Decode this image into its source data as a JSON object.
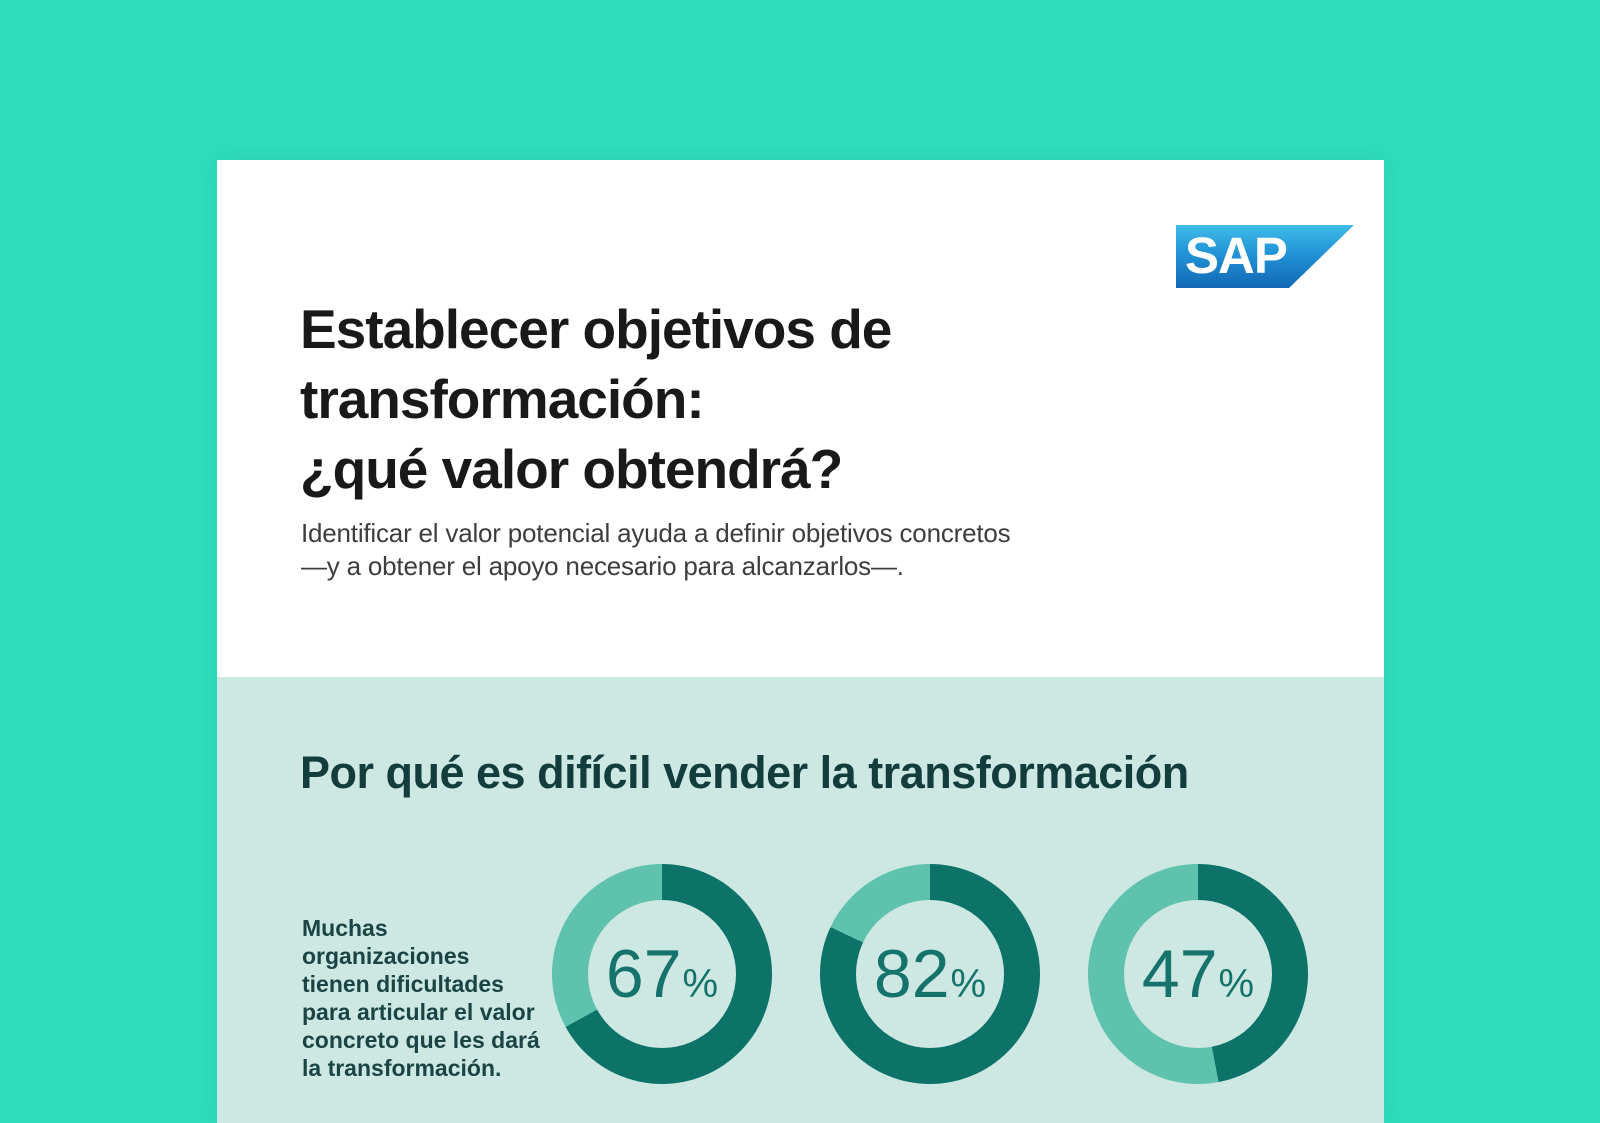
{
  "page": {
    "background_color": "#2ddcba",
    "card_background_color": "#ffffff",
    "section_background_color": "#cde8e2"
  },
  "header": {
    "logo_text": "SAP",
    "logo_colors": {
      "gradient_top": "#3fbce8",
      "gradient_bottom": "#1268b4",
      "text": "#ffffff"
    },
    "title": "Establecer objetivos de\ntransformación:\n¿qué valor obtendrá?",
    "subtitle": "Identificar el valor potencial ayuda a definir objetivos concretos\n—y a obtener el apoyo necesario para alcanzarlos—."
  },
  "section": {
    "heading": "Por qué es difícil vender la transformación",
    "note": "Muchas\norganizaciones\ntienen dificultades\npara articular el valor\nconcreto que les dará\nla transformación."
  },
  "chart_data": {
    "type": "pie",
    "subtype": "donut",
    "title": "Por qué es difícil vender la transformación",
    "series": [
      {
        "name": "donut-1",
        "value": 67,
        "unit": "%"
      },
      {
        "name": "donut-2",
        "value": 82,
        "unit": "%"
      },
      {
        "name": "donut-3",
        "value": 47,
        "unit": "%"
      }
    ],
    "start_angle_deg": 0,
    "direction": "clockwise",
    "colors": {
      "filled": "#0d7268",
      "remainder": "#5fc2ac",
      "value_text": "#15736b",
      "hole": "#cde8e2"
    },
    "legend": "none",
    "labels_inside": true
  }
}
